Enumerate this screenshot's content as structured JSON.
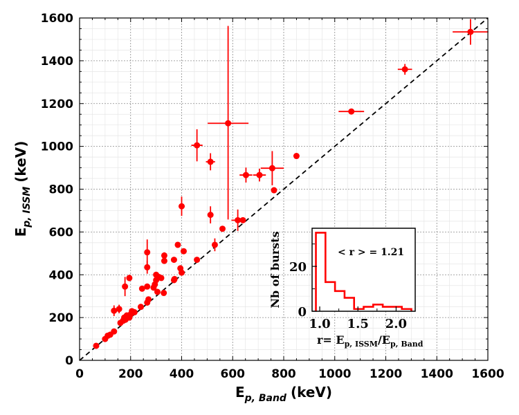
{
  "chart_data": [
    {
      "type": "scatter",
      "xlabel_main": "E",
      "xlabel_sub": "p, Band",
      "xlabel_unit": "(keV)",
      "ylabel_main": "E",
      "ylabel_sub": "p, ISSM",
      "ylabel_unit": "(keV)",
      "xlim": [
        0,
        1600
      ],
      "ylim": [
        0,
        1600
      ],
      "xticks": [
        0,
        200,
        400,
        600,
        800,
        1000,
        1200,
        1400,
        1600
      ],
      "yticks": [
        0,
        200,
        400,
        600,
        800,
        1000,
        1200,
        1400,
        1600
      ],
      "grid": true,
      "reference_line": "y = x",
      "marker_color": "#ff0000",
      "points": [
        {
          "x": 65,
          "y": 68
        },
        {
          "x": 100,
          "y": 100
        },
        {
          "x": 110,
          "y": 115
        },
        {
          "x": 120,
          "y": 120
        },
        {
          "x": 135,
          "y": 135
        },
        {
          "x": 135,
          "y": 232,
          "yerr": 25
        },
        {
          "x": 155,
          "y": 240,
          "yerr": 20
        },
        {
          "x": 160,
          "y": 175
        },
        {
          "x": 170,
          "y": 185
        },
        {
          "x": 175,
          "y": 200
        },
        {
          "x": 180,
          "y": 190
        },
        {
          "x": 185,
          "y": 210
        },
        {
          "x": 195,
          "y": 200
        },
        {
          "x": 200,
          "y": 215
        },
        {
          "x": 205,
          "y": 230
        },
        {
          "x": 215,
          "y": 225
        },
        {
          "x": 178,
          "y": 345,
          "yerr": 45
        },
        {
          "x": 195,
          "y": 385,
          "yerr": 15
        },
        {
          "x": 240,
          "y": 250
        },
        {
          "x": 245,
          "y": 335
        },
        {
          "x": 265,
          "y": 270
        },
        {
          "x": 270,
          "y": 285
        },
        {
          "x": 265,
          "y": 345
        },
        {
          "x": 265,
          "y": 435,
          "yerr": 30
        },
        {
          "x": 265,
          "y": 505,
          "yerr": 60
        },
        {
          "x": 290,
          "y": 340
        },
        {
          "x": 295,
          "y": 355
        },
        {
          "x": 300,
          "y": 375
        },
        {
          "x": 300,
          "y": 400
        },
        {
          "x": 305,
          "y": 320
        },
        {
          "x": 310,
          "y": 390
        },
        {
          "x": 320,
          "y": 385
        },
        {
          "x": 330,
          "y": 315
        },
        {
          "x": 332,
          "y": 465
        },
        {
          "x": 332,
          "y": 490,
          "yerr": 15
        },
        {
          "x": 370,
          "y": 375
        },
        {
          "x": 372,
          "y": 380
        },
        {
          "x": 370,
          "y": 470
        },
        {
          "x": 385,
          "y": 540
        },
        {
          "x": 395,
          "y": 430,
          "yerr": 15
        },
        {
          "x": 400,
          "y": 410
        },
        {
          "x": 400,
          "y": 720,
          "xerr": 12,
          "yerr": 45
        },
        {
          "x": 408,
          "y": 510
        },
        {
          "x": 460,
          "y": 470
        },
        {
          "x": 460,
          "y": 1005,
          "xerr": 22,
          "yerr": 75
        },
        {
          "x": 513,
          "y": 928,
          "xerr": 18,
          "yerr": 40
        },
        {
          "x": 513,
          "y": 680,
          "xerr": 10,
          "yerr": 40
        },
        {
          "x": 530,
          "y": 540,
          "yerr": 30
        },
        {
          "x": 560,
          "y": 615
        },
        {
          "x": 582,
          "y": 1108,
          "xerr": 80,
          "yerr_lo": 450,
          "yerr_hi": 455
        },
        {
          "x": 620,
          "y": 655,
          "xerr": 25,
          "yerr": 50
        },
        {
          "x": 640,
          "y": 655
        },
        {
          "x": 652,
          "y": 866,
          "xerr": 25,
          "yerr": 35
        },
        {
          "x": 705,
          "y": 866,
          "xerr": 25,
          "yerr": 30
        },
        {
          "x": 755,
          "y": 898,
          "xerr": 45,
          "yerr": 80
        },
        {
          "x": 762,
          "y": 795
        },
        {
          "x": 850,
          "y": 955
        },
        {
          "x": 1065,
          "y": 1163,
          "xerr": 50,
          "yerr": 12
        },
        {
          "x": 1275,
          "y": 1360,
          "xerr": 28,
          "yerr": 25
        },
        {
          "x": 1532,
          "y": 1535,
          "xerr": 70,
          "yerr": 60
        }
      ]
    },
    {
      "type": "histogram",
      "xlabel_prefix": "r= E",
      "xlabel_num_sub": "p, ISSM",
      "xlabel_den": "/E",
      "xlabel_den_sub": "p, Band",
      "ylabel": "Nb of bursts",
      "annotation": "< r > = 1.21",
      "xlim": [
        0.9,
        2.25
      ],
      "ylim": [
        0,
        37
      ],
      "xticks": [
        1.0,
        1.5,
        2.0
      ],
      "xtick_labels": [
        "1.0",
        "1.5",
        "2.0"
      ],
      "yticks": [
        0,
        20
      ],
      "ytick_labels": [
        "0",
        "20"
      ],
      "bin_edges": [
        0.95,
        1.075,
        1.2,
        1.325,
        1.45,
        1.575,
        1.7,
        1.825,
        1.95,
        2.075,
        2.2
      ],
      "counts": [
        35,
        13,
        9,
        6,
        1,
        2,
        3,
        2,
        2,
        1
      ],
      "line_color": "#ff0000"
    }
  ]
}
